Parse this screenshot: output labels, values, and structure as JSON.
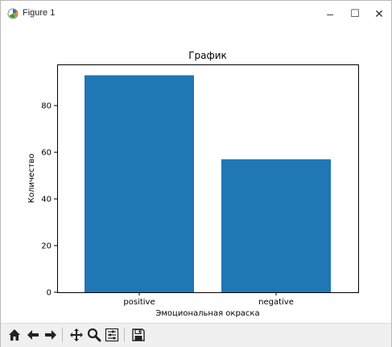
{
  "window": {
    "title": "Figure 1",
    "controls": {
      "minimize": "–",
      "maximize": "☐",
      "close": "✕"
    }
  },
  "toolbar": {
    "tools": [
      "home-icon",
      "back-icon",
      "forward-icon",
      "pan-icon",
      "zoom-icon",
      "configure-subplots-icon",
      "save-icon"
    ]
  },
  "colors": {
    "bar": "#1f77b4",
    "axes": "#000000"
  },
  "chart_data": {
    "type": "bar",
    "title": "График",
    "xlabel": "Эмоциональная окраска",
    "ylabel": "Количество",
    "categories": [
      "positive",
      "negative"
    ],
    "values": [
      93,
      57
    ],
    "ylim": [
      0,
      97.65
    ],
    "yticks": [
      0,
      20,
      40,
      60,
      80
    ],
    "grid": false
  }
}
